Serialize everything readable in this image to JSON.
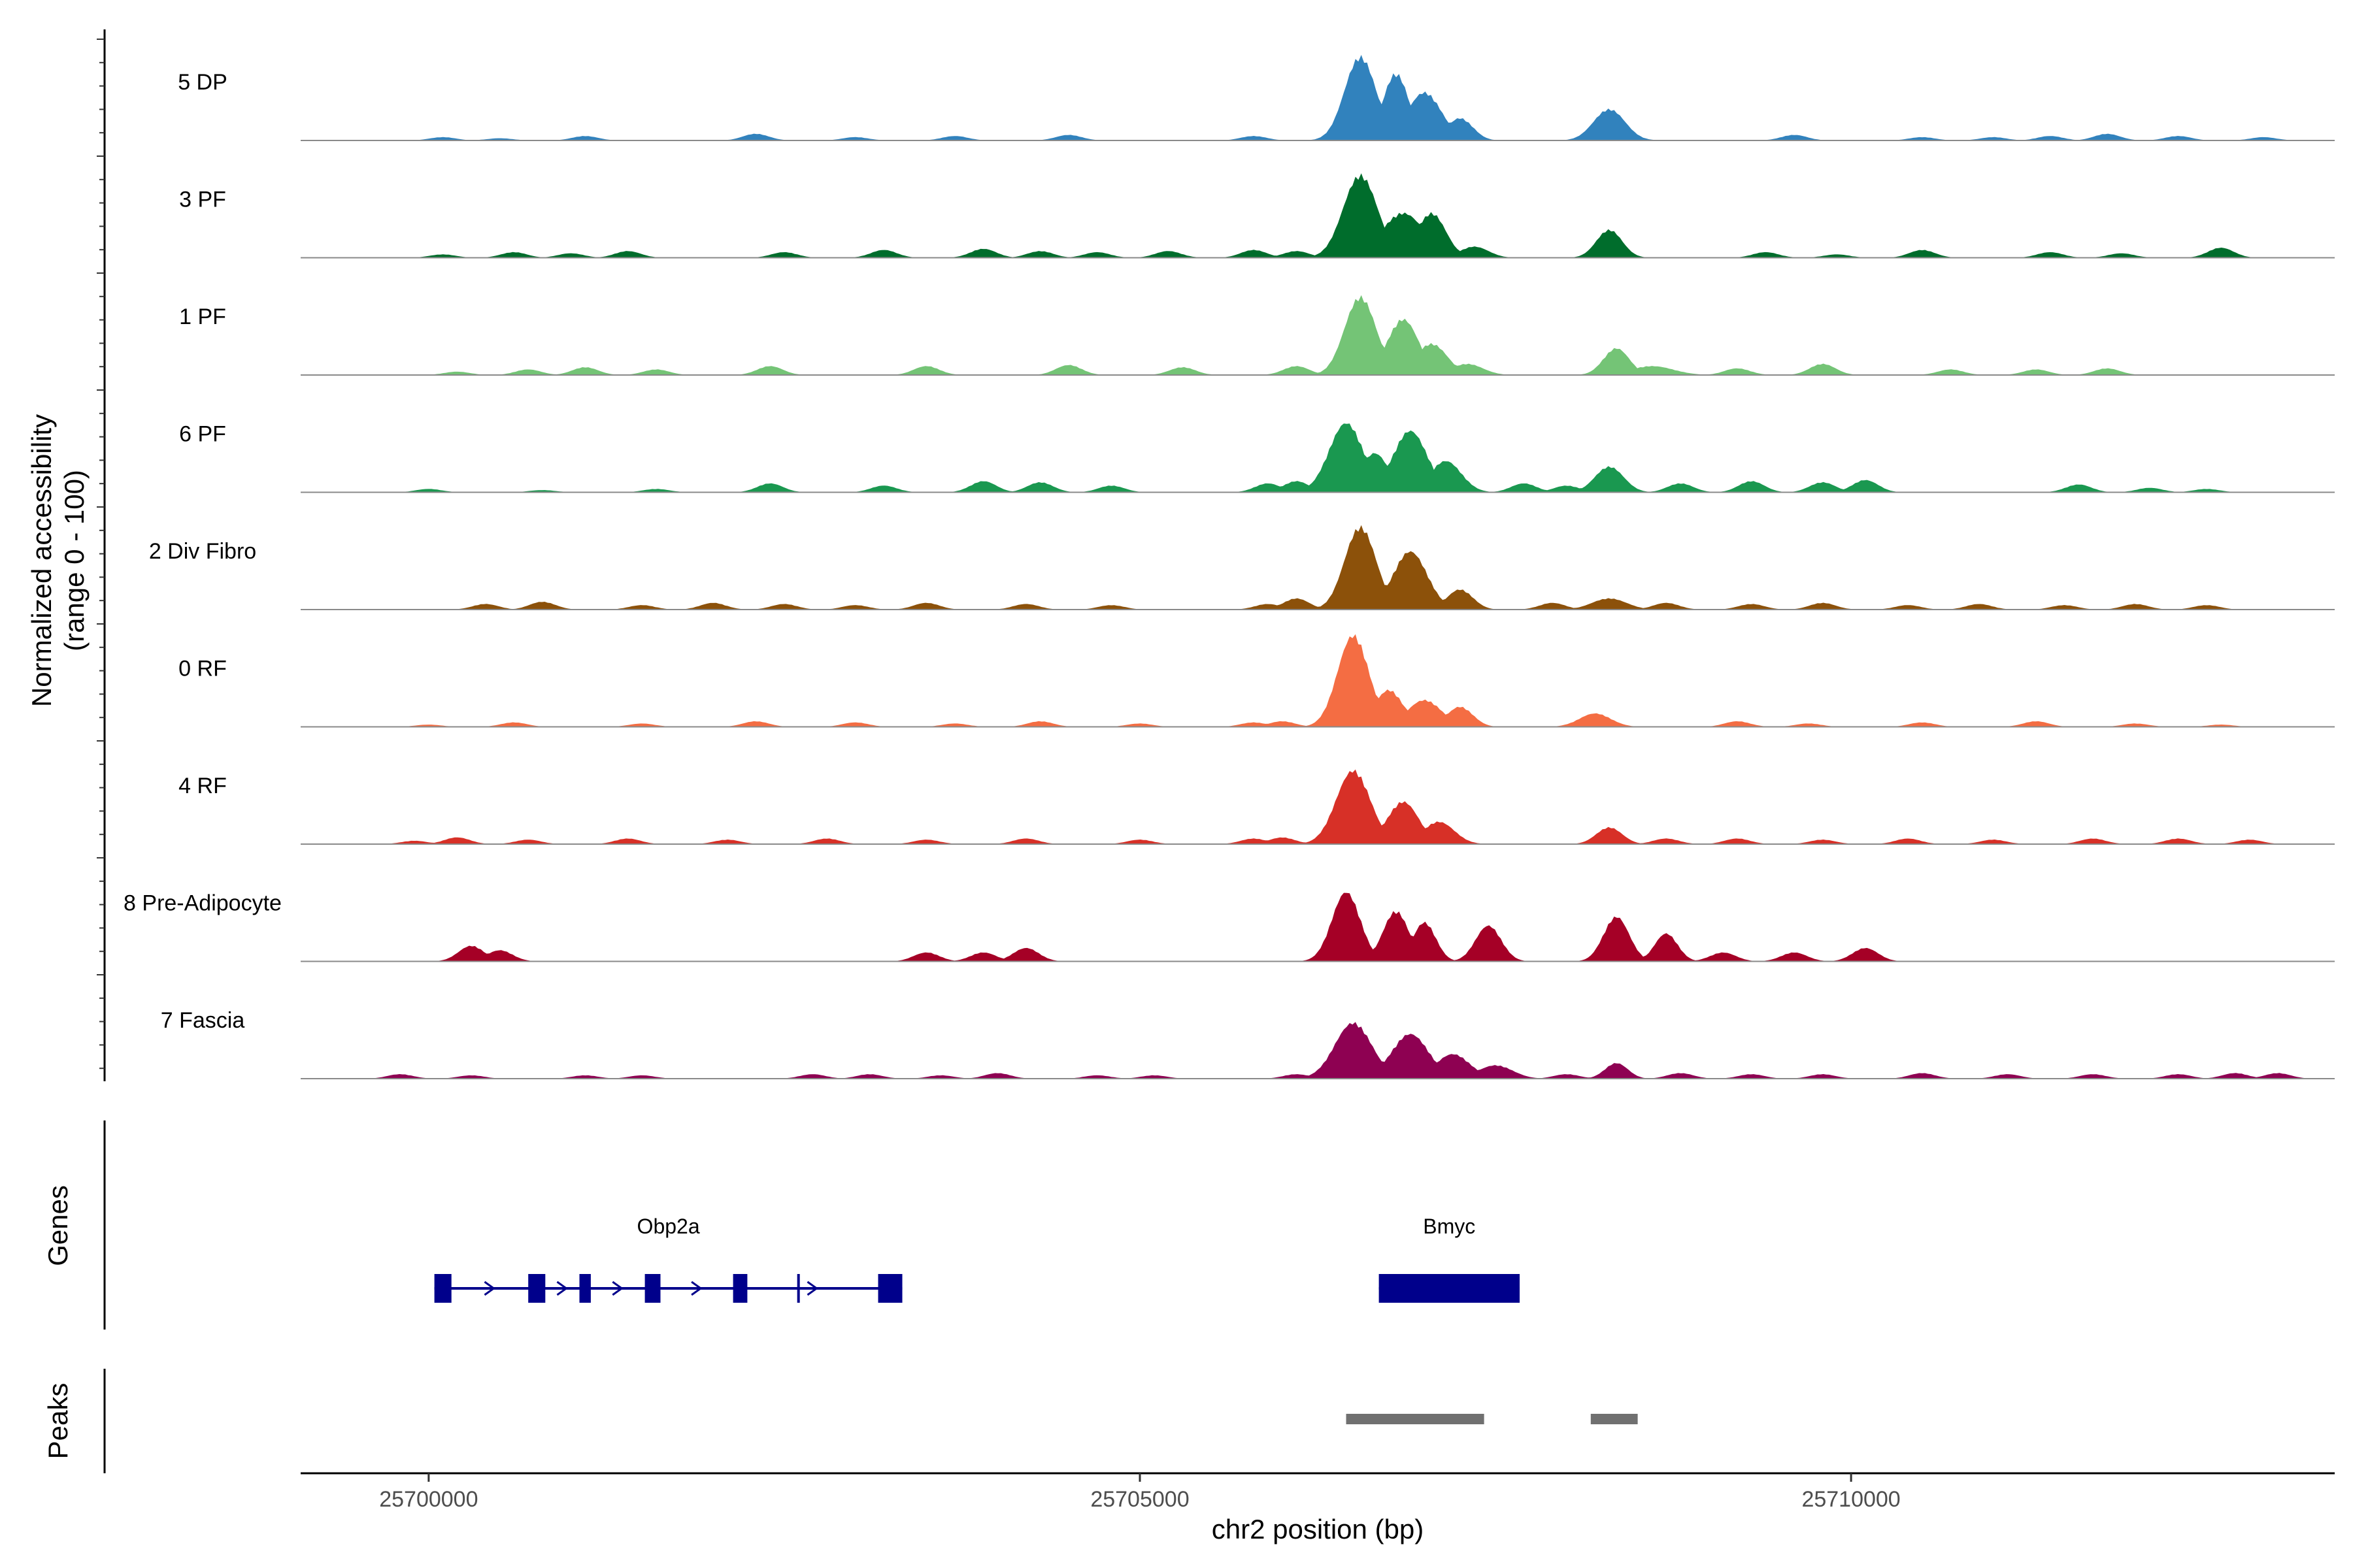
{
  "chart_data": {
    "type": "area",
    "title": "",
    "ylabel_line1": "Normalized accessibility",
    "ylabel_line2": "(range 0 - 100)",
    "ylim": [
      0,
      100
    ],
    "xlabel": "chr2 position (bp)",
    "xlim": [
      25699100,
      25713400
    ],
    "xticks": [
      25700000,
      25705000,
      25710000
    ],
    "xtick_labels": [
      "25700000",
      "25705000",
      "25710000"
    ],
    "tracks": [
      {
        "name": "5 DP",
        "color": "#3182bd",
        "peaks": [
          [
            25706550,
            75,
            110
          ],
          [
            25706800,
            60,
            90
          ],
          [
            25707000,
            43,
            120
          ],
          [
            25707250,
            20,
            90
          ],
          [
            25708300,
            28,
            110
          ]
        ],
        "noise": [
          [
            25700100,
            3
          ],
          [
            25700500,
            2
          ],
          [
            25701100,
            4
          ],
          [
            25702300,
            6
          ],
          [
            25703000,
            3
          ],
          [
            25703700,
            4
          ],
          [
            25704500,
            5
          ],
          [
            25705800,
            4
          ],
          [
            25709600,
            5
          ],
          [
            25710500,
            3
          ],
          [
            25711000,
            3
          ],
          [
            25711400,
            4
          ],
          [
            25711800,
            6
          ],
          [
            25712300,
            4
          ],
          [
            25712900,
            3
          ]
        ]
      },
      {
        "name": "3 PF",
        "color": "#006d2c",
        "peaks": [
          [
            25706550,
            74,
            120
          ],
          [
            25706850,
            40,
            150
          ],
          [
            25707050,
            40,
            100
          ],
          [
            25707350,
            10,
            100
          ],
          [
            25708300,
            25,
            90
          ]
        ],
        "noise": [
          [
            25700100,
            3
          ],
          [
            25700600,
            5
          ],
          [
            25701000,
            4
          ],
          [
            25701400,
            6
          ],
          [
            25702500,
            5
          ],
          [
            25703200,
            7
          ],
          [
            25703900,
            8
          ],
          [
            25704300,
            6
          ],
          [
            25704700,
            5
          ],
          [
            25705200,
            6
          ],
          [
            25705800,
            7
          ],
          [
            25706100,
            6
          ],
          [
            25709400,
            5
          ],
          [
            25709900,
            3
          ],
          [
            25710500,
            7
          ],
          [
            25711400,
            5
          ],
          [
            25711900,
            4
          ],
          [
            25712600,
            9
          ]
        ]
      },
      {
        "name": "1 PF",
        "color": "#74c476",
        "peaks": [
          [
            25706550,
            70,
            110
          ],
          [
            25706850,
            50,
            110
          ],
          [
            25707050,
            28,
            110
          ],
          [
            25707300,
            10,
            110
          ],
          [
            25708350,
            24,
            90
          ],
          [
            25708600,
            8,
            150
          ]
        ],
        "noise": [
          [
            25700200,
            3
          ],
          [
            25700700,
            5
          ],
          [
            25701100,
            7
          ],
          [
            25701600,
            5
          ],
          [
            25702400,
            8
          ],
          [
            25703500,
            8
          ],
          [
            25704500,
            9
          ],
          [
            25705300,
            7
          ],
          [
            25706100,
            8
          ],
          [
            25709200,
            6
          ],
          [
            25709800,
            10
          ],
          [
            25710700,
            5
          ],
          [
            25711300,
            5
          ],
          [
            25711800,
            6
          ]
        ]
      },
      {
        "name": "6 PF",
        "color": "#1a9850",
        "peaks": [
          [
            25706450,
            62,
            120
          ],
          [
            25706650,
            35,
            100
          ],
          [
            25706900,
            55,
            120
          ],
          [
            25707150,
            28,
            110
          ],
          [
            25708300,
            23,
            100
          ]
        ],
        "noise": [
          [
            25700000,
            3
          ],
          [
            25700800,
            2
          ],
          [
            25701600,
            3
          ],
          [
            25702400,
            8
          ],
          [
            25703200,
            6
          ],
          [
            25703900,
            10
          ],
          [
            25704300,
            9
          ],
          [
            25704800,
            6
          ],
          [
            25705900,
            8
          ],
          [
            25706100,
            10
          ],
          [
            25706650,
            12
          ],
          [
            25707700,
            8
          ],
          [
            25708000,
            6
          ],
          [
            25708800,
            8
          ],
          [
            25709300,
            10
          ],
          [
            25709800,
            9
          ],
          [
            25710100,
            11
          ],
          [
            25711600,
            7
          ],
          [
            25712100,
            4
          ],
          [
            25712500,
            3
          ]
        ]
      },
      {
        "name": "2 Div Fibro",
        "color": "#8c510a",
        "peaks": [
          [
            25706550,
            74,
            110
          ],
          [
            25706900,
            52,
            120
          ],
          [
            25707250,
            18,
            90
          ],
          [
            25708300,
            10,
            120
          ]
        ],
        "noise": [
          [
            25700400,
            5
          ],
          [
            25700800,
            7
          ],
          [
            25701500,
            4
          ],
          [
            25702000,
            6
          ],
          [
            25702500,
            5
          ],
          [
            25703000,
            4
          ],
          [
            25703500,
            6
          ],
          [
            25704200,
            5
          ],
          [
            25704800,
            4
          ],
          [
            25705900,
            5
          ],
          [
            25706100,
            10
          ],
          [
            25707900,
            6
          ],
          [
            25708700,
            6
          ],
          [
            25709300,
            5
          ],
          [
            25709800,
            6
          ],
          [
            25710400,
            4
          ],
          [
            25710900,
            5
          ],
          [
            25711500,
            4
          ],
          [
            25712000,
            5
          ],
          [
            25712500,
            4
          ]
        ]
      },
      {
        "name": "0 RF",
        "color": "#f46d43",
        "peaks": [
          [
            25706500,
            82,
            110
          ],
          [
            25706750,
            33,
            100
          ],
          [
            25707000,
            24,
            120
          ],
          [
            25707250,
            18,
            90
          ],
          [
            25708200,
            12,
            110
          ]
        ],
        "noise": [
          [
            25700000,
            2
          ],
          [
            25700600,
            4
          ],
          [
            25701500,
            3
          ],
          [
            25702300,
            5
          ],
          [
            25703000,
            4
          ],
          [
            25703700,
            3
          ],
          [
            25704300,
            5
          ],
          [
            25705000,
            3
          ],
          [
            25705800,
            4
          ],
          [
            25706000,
            5
          ],
          [
            25709200,
            5
          ],
          [
            25709700,
            3
          ],
          [
            25710500,
            4
          ],
          [
            25711300,
            5
          ],
          [
            25712000,
            3
          ],
          [
            25712600,
            2
          ]
        ]
      },
      {
        "name": "4 RF",
        "color": "#d73027",
        "peaks": [
          [
            25706500,
            66,
            120
          ],
          [
            25706850,
            38,
            110
          ],
          [
            25707100,
            20,
            110
          ],
          [
            25708300,
            15,
            90
          ]
        ],
        "noise": [
          [
            25699900,
            3
          ],
          [
            25700200,
            6
          ],
          [
            25700700,
            4
          ],
          [
            25701400,
            5
          ],
          [
            25702100,
            4
          ],
          [
            25702800,
            5
          ],
          [
            25703500,
            4
          ],
          [
            25704200,
            5
          ],
          [
            25705000,
            4
          ],
          [
            25705800,
            5
          ],
          [
            25706000,
            6
          ],
          [
            25708700,
            5
          ],
          [
            25709200,
            5
          ],
          [
            25709800,
            4
          ],
          [
            25710400,
            5
          ],
          [
            25711000,
            4
          ],
          [
            25711700,
            5
          ],
          [
            25712300,
            5
          ],
          [
            25712800,
            4
          ]
        ]
      },
      {
        "name": "8 Pre-Adipocyte",
        "color": "#a50026",
        "peaks": [
          [
            25706450,
            62,
            100
          ],
          [
            25706800,
            45,
            90
          ],
          [
            25707000,
            35,
            80
          ],
          [
            25707450,
            32,
            90
          ],
          [
            25708350,
            40,
            90
          ],
          [
            25708700,
            25,
            80
          ]
        ],
        "noise": [
          [
            25700300,
            14
          ],
          [
            25700500,
            10
          ],
          [
            25703500,
            8
          ],
          [
            25703900,
            8
          ],
          [
            25704200,
            12
          ],
          [
            25709100,
            8
          ],
          [
            25709600,
            8
          ],
          [
            25710100,
            12
          ]
        ]
      },
      {
        "name": "7 Fascia",
        "color": "#8e0152",
        "peaks": [
          [
            25706500,
            50,
            130
          ],
          [
            25706900,
            40,
            130
          ],
          [
            25707200,
            22,
            120
          ],
          [
            25707500,
            12,
            120
          ],
          [
            25708350,
            14,
            80
          ]
        ],
        "noise": [
          [
            25699800,
            4
          ],
          [
            25700300,
            3
          ],
          [
            25701100,
            3
          ],
          [
            25701500,
            3
          ],
          [
            25702700,
            4
          ],
          [
            25703100,
            4
          ],
          [
            25703600,
            3
          ],
          [
            25704000,
            5
          ],
          [
            25704700,
            3
          ],
          [
            25705100,
            3
          ],
          [
            25706100,
            4
          ],
          [
            25708000,
            4
          ],
          [
            25708800,
            5
          ],
          [
            25709300,
            4
          ],
          [
            25709800,
            4
          ],
          [
            25710500,
            5
          ],
          [
            25711100,
            4
          ],
          [
            25711700,
            4
          ],
          [
            25712300,
            4
          ],
          [
            25712700,
            5
          ],
          [
            25713000,
            5
          ]
        ]
      }
    ],
    "genes": [
      {
        "name": "Obp2a",
        "start": 25700040,
        "end": 25703330,
        "strand": "+",
        "exons": [
          [
            25700040,
            25700160
          ],
          [
            25700700,
            25700820
          ],
          [
            25701060,
            25701140
          ],
          [
            25701520,
            25701630
          ],
          [
            25702140,
            25702240
          ],
          [
            25703160,
            25703330
          ]
        ],
        "markers": [
          25702600
        ]
      },
      {
        "name": "Bmyc",
        "start": 25706680,
        "end": 25707670,
        "strand": "+",
        "exons": [
          [
            25706680,
            25707670
          ]
        ],
        "markers": []
      }
    ],
    "peaks_track": [
      [
        25706450,
        25707420
      ],
      [
        25708170,
        25708500
      ]
    ],
    "panel_labels": [
      "Genes",
      "Peaks"
    ]
  }
}
